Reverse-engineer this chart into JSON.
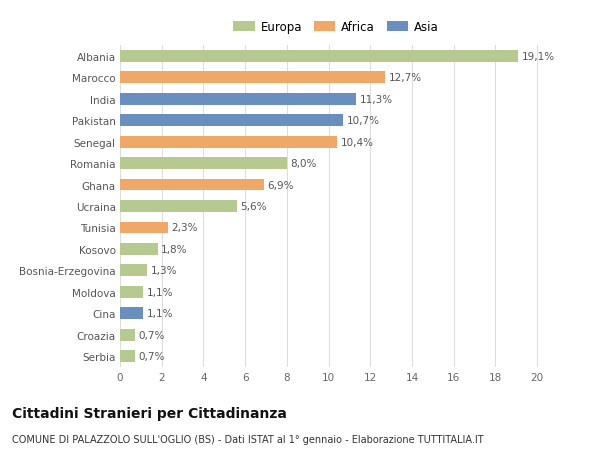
{
  "countries": [
    "Serbia",
    "Croazia",
    "Cina",
    "Moldova",
    "Bosnia-Erzegovina",
    "Kosovo",
    "Tunisia",
    "Ucraina",
    "Ghana",
    "Romania",
    "Senegal",
    "Pakistan",
    "India",
    "Marocco",
    "Albania"
  ],
  "values": [
    0.7,
    0.7,
    1.1,
    1.1,
    1.3,
    1.8,
    2.3,
    5.6,
    6.9,
    8.0,
    10.4,
    10.7,
    11.3,
    12.7,
    19.1
  ],
  "labels": [
    "0,7%",
    "0,7%",
    "1,1%",
    "1,1%",
    "1,3%",
    "1,8%",
    "2,3%",
    "5,6%",
    "6,9%",
    "8,0%",
    "10,4%",
    "10,7%",
    "11,3%",
    "12,7%",
    "19,1%"
  ],
  "colors": [
    "#b5c990",
    "#b5c990",
    "#6a8fbf",
    "#b5c990",
    "#b5c990",
    "#b5c990",
    "#f0a868",
    "#b5c990",
    "#f0a868",
    "#b5c990",
    "#f0a868",
    "#6a8fbf",
    "#6a8fbf",
    "#f0a868",
    "#b5c990"
  ],
  "legend": [
    {
      "label": "Europa",
      "color": "#b5c990"
    },
    {
      "label": "Africa",
      "color": "#f0a868"
    },
    {
      "label": "Asia",
      "color": "#6a8fbf"
    }
  ],
  "title": "Cittadini Stranieri per Cittadinanza",
  "subtitle": "COMUNE DI PALAZZOLO SULL'OGLIO (BS) - Dati ISTAT al 1° gennaio - Elaborazione TUTTITALIA.IT",
  "xlim": [
    0,
    21
  ],
  "xticks": [
    0,
    2,
    4,
    6,
    8,
    10,
    12,
    14,
    16,
    18,
    20
  ],
  "bg_color": "#ffffff",
  "grid_color": "#dddddd",
  "bar_height": 0.55,
  "label_fontsize": 7.5,
  "ytick_fontsize": 7.5,
  "xtick_fontsize": 7.5,
  "title_fontsize": 10,
  "subtitle_fontsize": 7,
  "legend_fontsize": 8.5
}
